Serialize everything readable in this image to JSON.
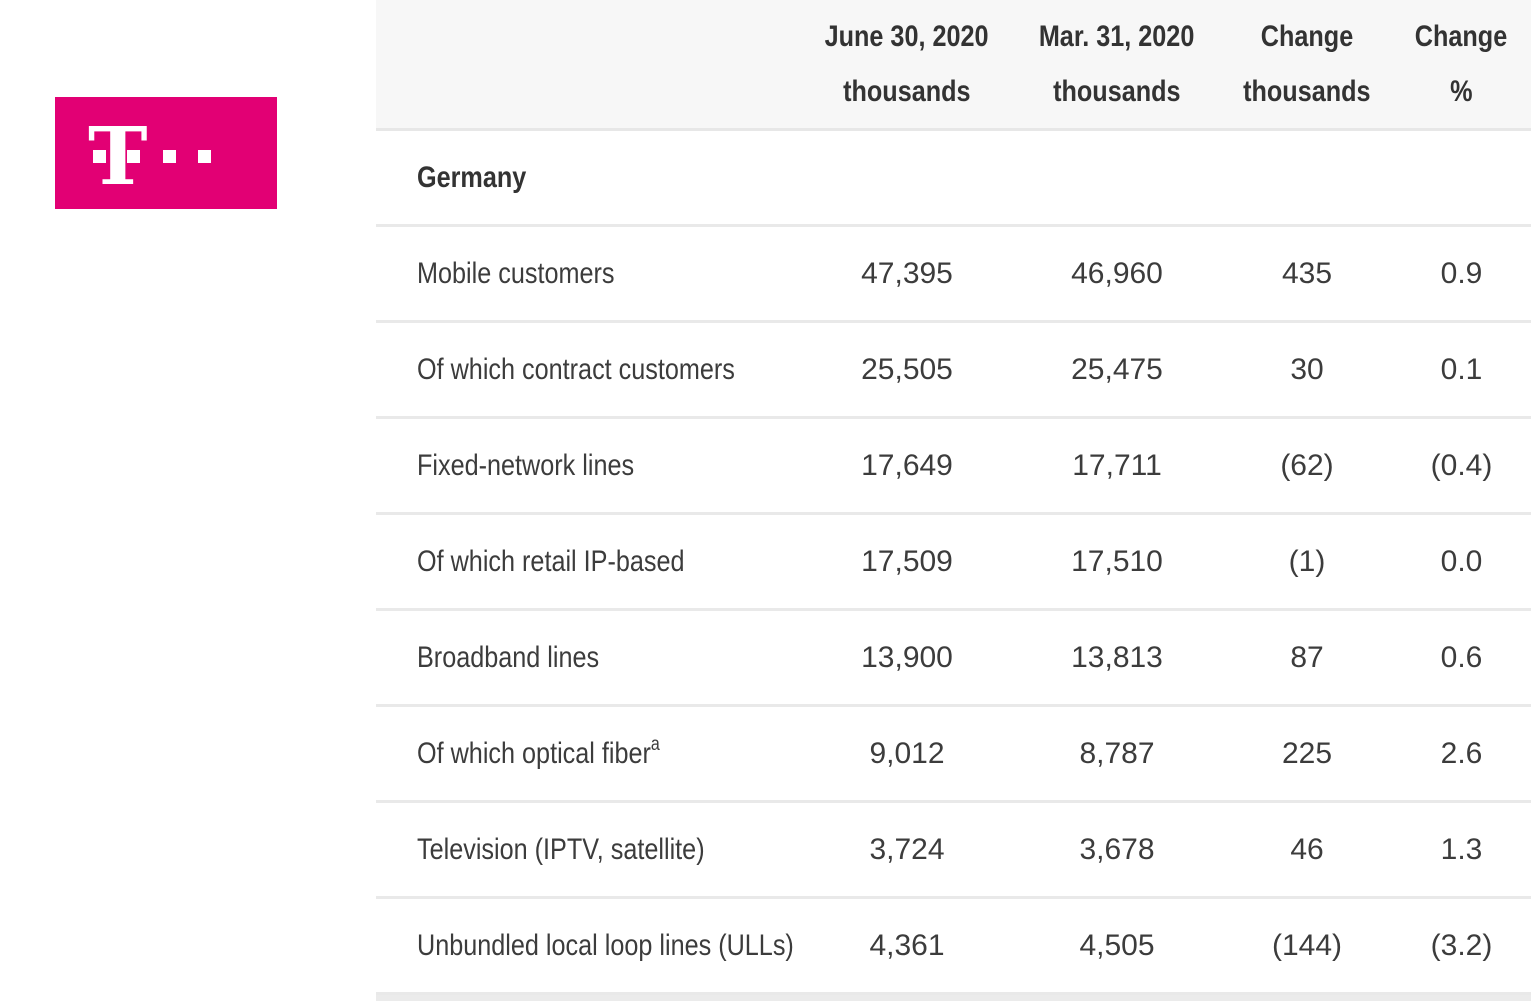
{
  "logo": {
    "letter": "T",
    "brand_color": "#e20074"
  },
  "colors": {
    "text": "#3c3c3c",
    "header_background": "#f7f7f7",
    "row_divider": "#e9e9e9"
  },
  "table": {
    "columns": [
      {
        "line1": "June 30, 2020",
        "line2": "thousands"
      },
      {
        "line1": "Mar. 31, 2020",
        "line2": "thousands"
      },
      {
        "line1": "Change",
        "line2": "thousands"
      },
      {
        "line1": "Change",
        "line2": "%"
      }
    ],
    "section": "Germany",
    "rows": [
      {
        "label": "Mobile customers",
        "sup": "",
        "v": [
          "47,395",
          "46,960",
          "435",
          "0.9"
        ]
      },
      {
        "label": "Of which contract customers",
        "sup": "",
        "v": [
          "25,505",
          "25,475",
          "30",
          "0.1"
        ]
      },
      {
        "label": "Fixed-network lines",
        "sup": "",
        "v": [
          "17,649",
          "17,711",
          "(62)",
          "(0.4)"
        ]
      },
      {
        "label": "Of which retail IP-based",
        "sup": "",
        "v": [
          "17,509",
          "17,510",
          "(1)",
          "0.0"
        ]
      },
      {
        "label": "Broadband lines",
        "sup": "",
        "v": [
          "13,900",
          "13,813",
          "87",
          "0.6"
        ]
      },
      {
        "label": "Of which optical fiber",
        "sup": "a",
        "v": [
          "9,012",
          "8,787",
          "225",
          "2.6"
        ]
      },
      {
        "label": "Television (IPTV, satellite)",
        "sup": "",
        "v": [
          "3,724",
          "3,678",
          "46",
          "1.3"
        ]
      },
      {
        "label": "Unbundled local loop lines (ULLs)",
        "sup": "",
        "v": [
          "4,361",
          "4,505",
          "(144)",
          "(3.2)"
        ]
      }
    ]
  }
}
